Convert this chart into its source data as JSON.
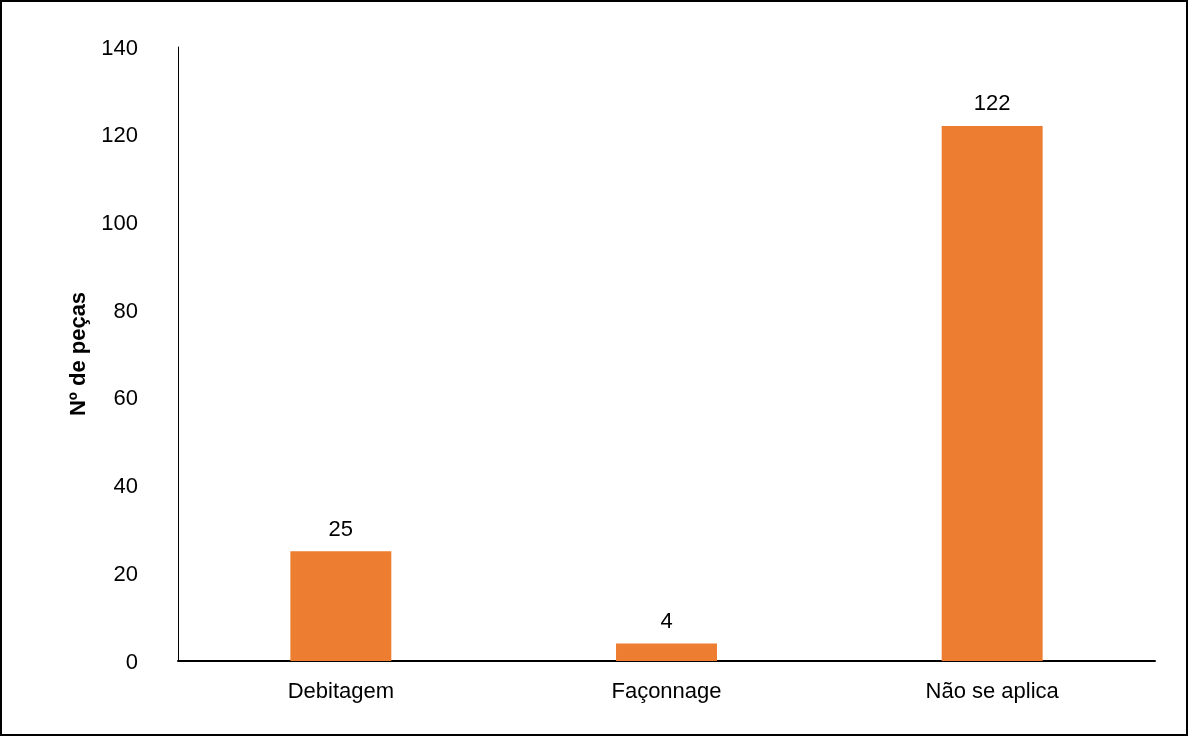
{
  "chart_data": {
    "type": "bar",
    "ylabel": "Nº de peças",
    "categories": [
      "Debitagem",
      "Façonnage",
      "Não se aplica"
    ],
    "values": [
      25,
      4,
      122
    ],
    "color": "#ed7d31",
    "ylim": [
      0,
      140
    ],
    "yticks": [
      0,
      20,
      40,
      60,
      80,
      100,
      120,
      140
    ],
    "grid": false,
    "data_labels": true
  }
}
